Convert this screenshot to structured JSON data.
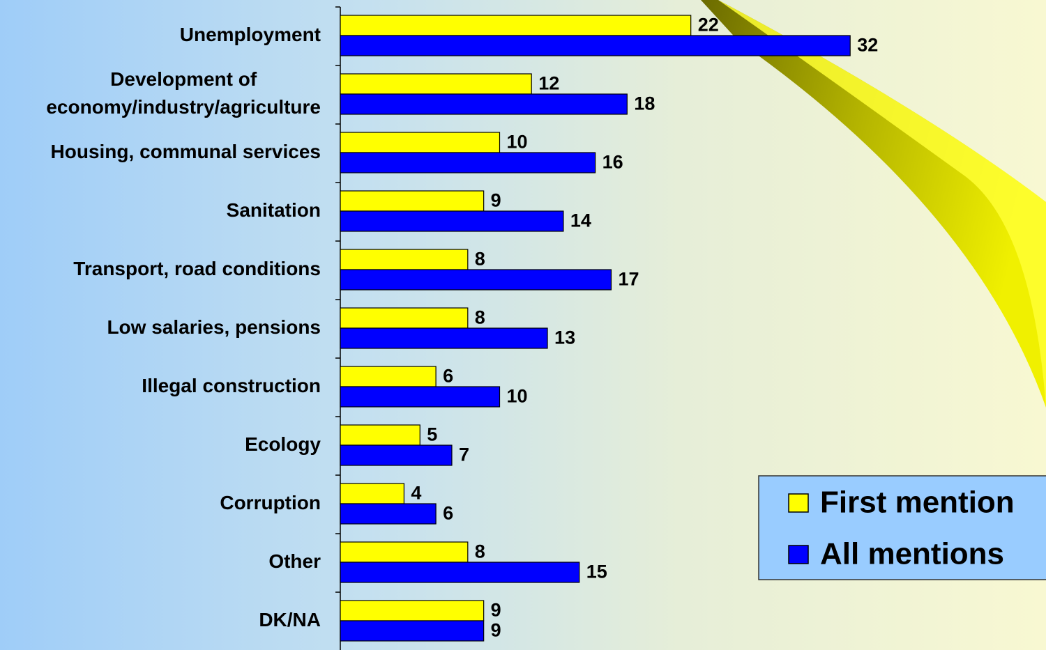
{
  "chart_data": {
    "type": "bar",
    "orientation": "horizontal",
    "categories": [
      "Unemployment",
      "Development of\neconomy/industry/agriculture",
      "Housing, communal services",
      "Sanitation",
      "Transport, road conditions",
      "Low salaries, pensions",
      "Illegal construction",
      "Ecology",
      "Corruption",
      "Other",
      "DK/NA"
    ],
    "series": [
      {
        "name": "First mention",
        "color": "#ffff00",
        "values": [
          22,
          12,
          10,
          9,
          8,
          8,
          6,
          5,
          4,
          8,
          9
        ]
      },
      {
        "name": "All mentions",
        "color": "#0000ff",
        "values": [
          32,
          18,
          16,
          14,
          17,
          13,
          10,
          7,
          6,
          15,
          9
        ]
      }
    ],
    "legend_position": "lower right"
  }
}
